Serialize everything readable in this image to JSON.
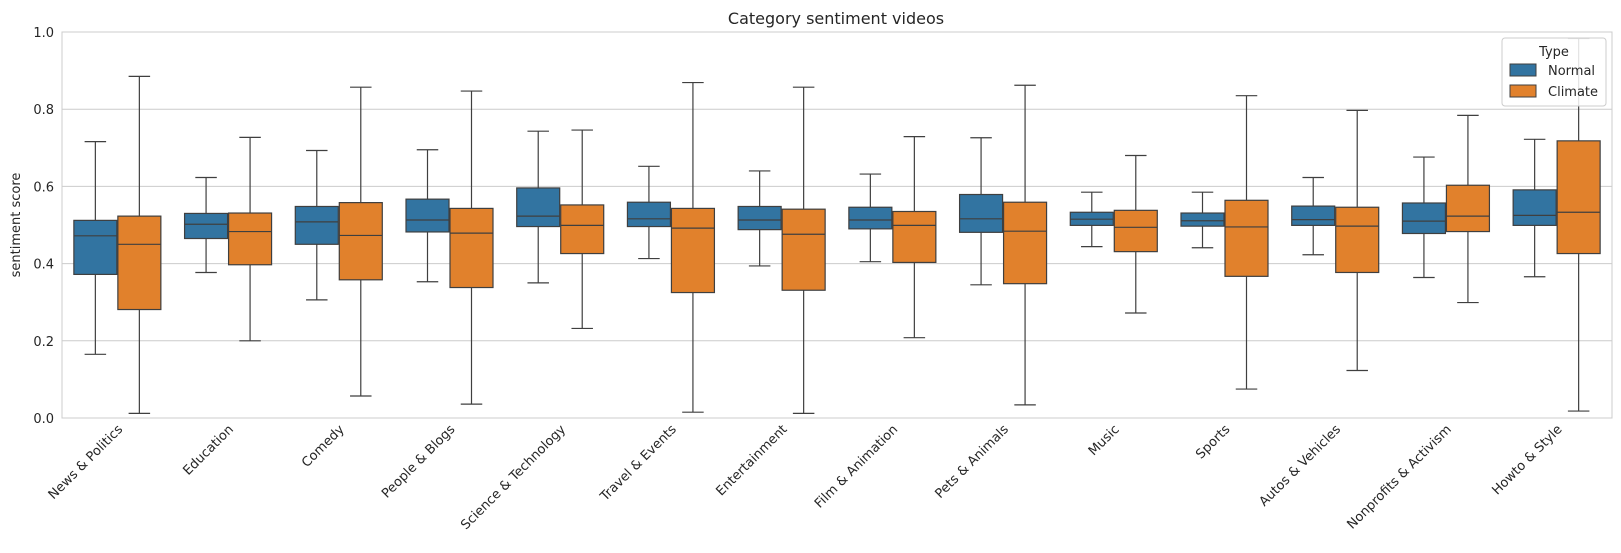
{
  "chart_data": {
    "type": "box",
    "title": "Category sentiment videos",
    "xlabel": "",
    "ylabel": "sentiment score",
    "ylim": [
      0,
      1
    ],
    "yticks": [
      "0.0",
      "0.2",
      "0.4",
      "0.6",
      "0.8",
      "1.0"
    ],
    "grid": true,
    "legend": {
      "title": "Type",
      "position": "top-right"
    },
    "categories": [
      "News & Politics",
      "Education",
      "Comedy",
      "People & Blogs",
      "Science & Technology",
      "Travel & Events",
      "Entertainment",
      "Film & Animation",
      "Pets & Animals",
      "Music",
      "Sports",
      "Autos & Vehicles",
      "Nonprofits & Activism",
      "Howto & Style"
    ],
    "series": [
      {
        "name": "Normal",
        "color": "#3274a1",
        "boxes": [
          {
            "whislo": 0.165,
            "q1": 0.372,
            "med": 0.472,
            "q3": 0.512,
            "whishi": 0.716
          },
          {
            "whislo": 0.377,
            "q1": 0.465,
            "med": 0.502,
            "q3": 0.53,
            "whishi": 0.623
          },
          {
            "whislo": 0.306,
            "q1": 0.45,
            "med": 0.508,
            "q3": 0.548,
            "whishi": 0.693
          },
          {
            "whislo": 0.353,
            "q1": 0.482,
            "med": 0.513,
            "q3": 0.567,
            "whishi": 0.695
          },
          {
            "whislo": 0.35,
            "q1": 0.496,
            "med": 0.523,
            "q3": 0.596,
            "whishi": 0.743
          },
          {
            "whislo": 0.413,
            "q1": 0.496,
            "med": 0.516,
            "q3": 0.559,
            "whishi": 0.652
          },
          {
            "whislo": 0.394,
            "q1": 0.488,
            "med": 0.513,
            "q3": 0.548,
            "whishi": 0.64
          },
          {
            "whislo": 0.405,
            "q1": 0.49,
            "med": 0.513,
            "q3": 0.546,
            "whishi": 0.632
          },
          {
            "whislo": 0.345,
            "q1": 0.481,
            "med": 0.516,
            "q3": 0.579,
            "whishi": 0.726
          },
          {
            "whislo": 0.444,
            "q1": 0.499,
            "med": 0.515,
            "q3": 0.533,
            "whishi": 0.585
          },
          {
            "whislo": 0.441,
            "q1": 0.497,
            "med": 0.511,
            "q3": 0.531,
            "whishi": 0.585
          },
          {
            "whislo": 0.423,
            "q1": 0.499,
            "med": 0.514,
            "q3": 0.549,
            "whishi": 0.623
          },
          {
            "whislo": 0.364,
            "q1": 0.478,
            "med": 0.51,
            "q3": 0.557,
            "whishi": 0.676
          },
          {
            "whislo": 0.366,
            "q1": 0.499,
            "med": 0.525,
            "q3": 0.591,
            "whishi": 0.722
          }
        ]
      },
      {
        "name": "Climate",
        "color": "#e1812c",
        "boxes": [
          {
            "whislo": 0.012,
            "q1": 0.281,
            "med": 0.45,
            "q3": 0.523,
            "whishi": 0.885
          },
          {
            "whislo": 0.2,
            "q1": 0.397,
            "med": 0.483,
            "q3": 0.531,
            "whishi": 0.727
          },
          {
            "whislo": 0.057,
            "q1": 0.358,
            "med": 0.473,
            "q3": 0.558,
            "whishi": 0.857
          },
          {
            "whislo": 0.036,
            "q1": 0.338,
            "med": 0.479,
            "q3": 0.543,
            "whishi": 0.847
          },
          {
            "whislo": 0.232,
            "q1": 0.426,
            "med": 0.499,
            "q3": 0.552,
            "whishi": 0.746
          },
          {
            "whislo": 0.015,
            "q1": 0.325,
            "med": 0.492,
            "q3": 0.543,
            "whishi": 0.869
          },
          {
            "whislo": 0.012,
            "q1": 0.331,
            "med": 0.476,
            "q3": 0.541,
            "whishi": 0.857
          },
          {
            "whislo": 0.208,
            "q1": 0.403,
            "med": 0.499,
            "q3": 0.535,
            "whishi": 0.729
          },
          {
            "whislo": 0.034,
            "q1": 0.348,
            "med": 0.484,
            "q3": 0.559,
            "whishi": 0.862
          },
          {
            "whislo": 0.272,
            "q1": 0.431,
            "med": 0.494,
            "q3": 0.538,
            "whishi": 0.68
          },
          {
            "whislo": 0.075,
            "q1": 0.367,
            "med": 0.495,
            "q3": 0.564,
            "whishi": 0.835
          },
          {
            "whislo": 0.123,
            "q1": 0.377,
            "med": 0.497,
            "q3": 0.546,
            "whishi": 0.797
          },
          {
            "whislo": 0.299,
            "q1": 0.483,
            "med": 0.523,
            "q3": 0.603,
            "whishi": 0.784
          },
          {
            "whislo": 0.018,
            "q1": 0.426,
            "med": 0.533,
            "q3": 0.718,
            "whishi": 0.983
          }
        ]
      }
    ]
  }
}
